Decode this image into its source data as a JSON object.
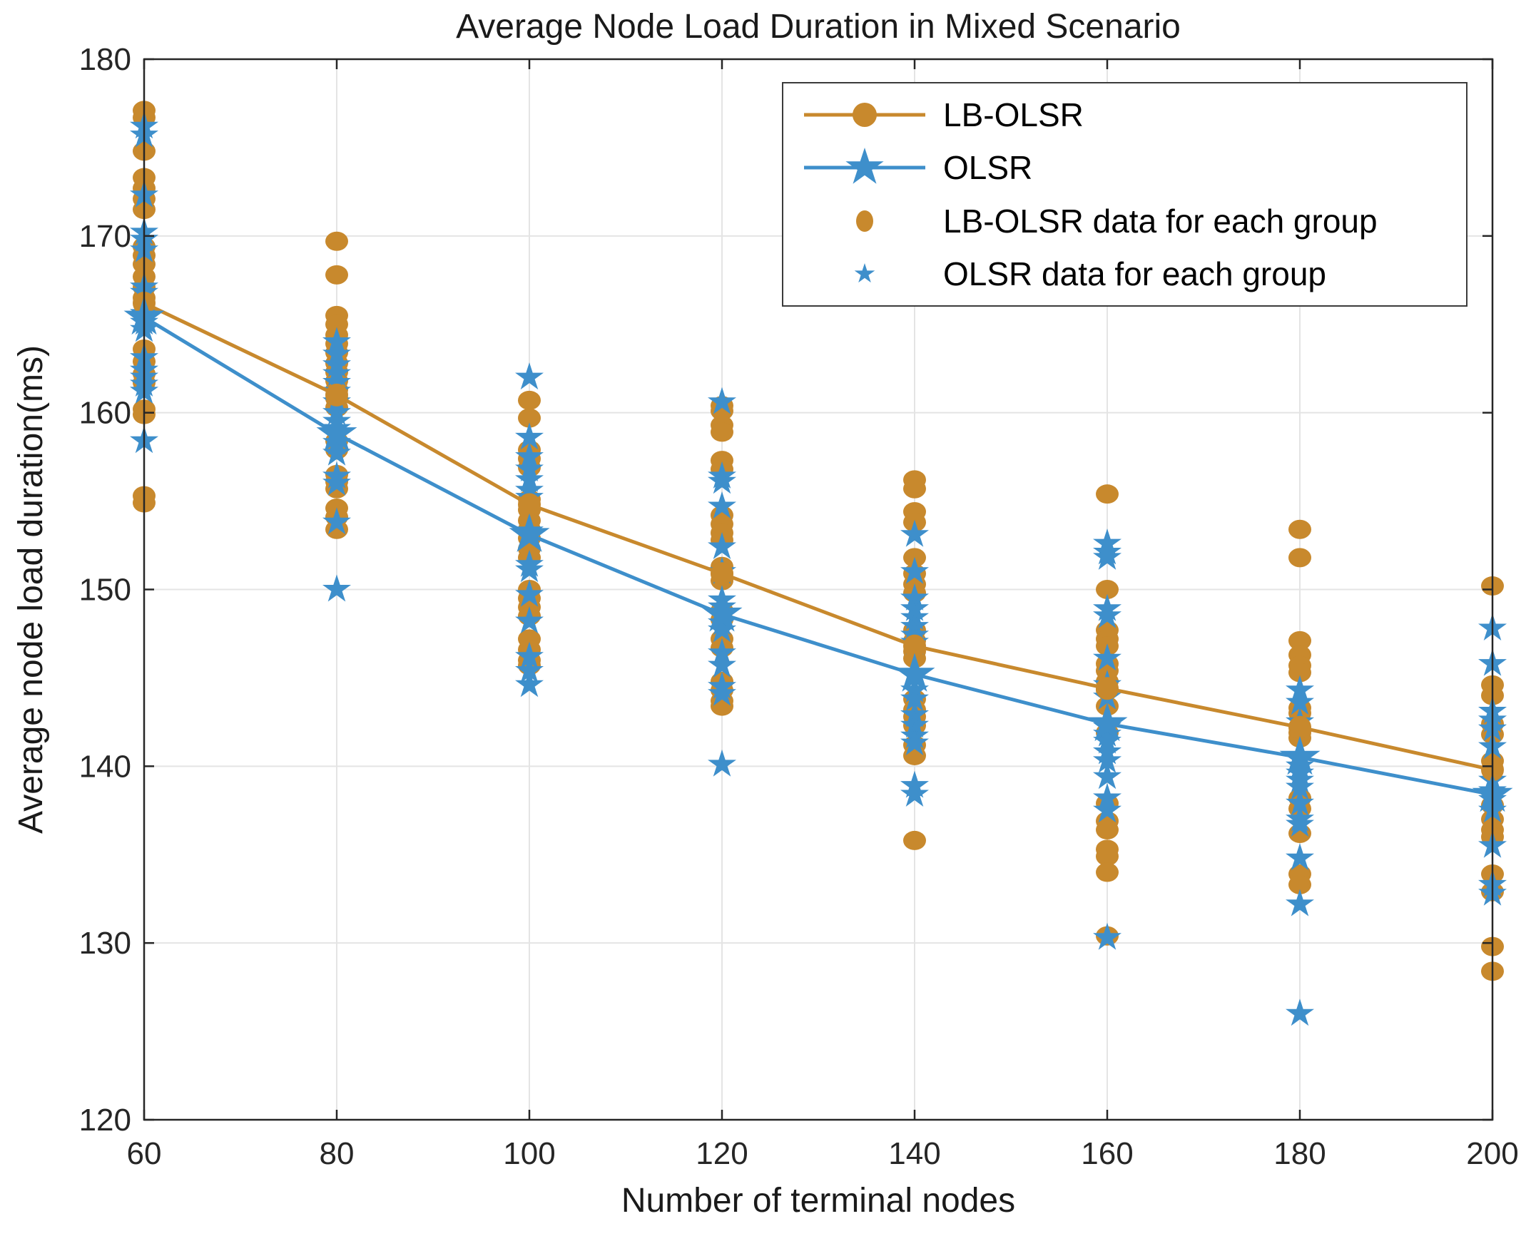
{
  "chart_data": {
    "type": "line+scatter",
    "title": "Average Node Load Duration in Mixed Scenario",
    "xlabel": "Number of terminal nodes",
    "ylabel": "Average node load duration(ms)",
    "xlim": [
      60,
      200
    ],
    "ylim": [
      120,
      180
    ],
    "xticks": [
      60,
      80,
      100,
      120,
      140,
      160,
      180,
      200
    ],
    "yticks": [
      120,
      130,
      140,
      150,
      160,
      170,
      180
    ],
    "grid": true,
    "legend_position": "top-right",
    "series": [
      {
        "name": "LB-OLSR",
        "type": "line",
        "marker": "circle",
        "color": "#C8892D",
        "x": [
          60,
          80,
          100,
          120,
          140,
          160,
          180,
          200
        ],
        "y": [
          166.2,
          161.0,
          154.8,
          150.9,
          146.8,
          144.4,
          142.2,
          139.8
        ]
      },
      {
        "name": "OLSR",
        "type": "line",
        "marker": "star",
        "color": "#3E8FCB",
        "x": [
          60,
          80,
          100,
          120,
          140,
          160,
          180,
          200
        ],
        "y": [
          165.4,
          158.8,
          153.1,
          148.6,
          145.2,
          142.4,
          140.5,
          138.4
        ]
      },
      {
        "name": "LB-OLSR data for each group",
        "type": "scatter",
        "marker": "circle",
        "color": "#C8892D",
        "groups": {
          "60": [
            177.1,
            176.7,
            174.8,
            173.3,
            172.7,
            172.1,
            171.5,
            169.4,
            168.9,
            168.4,
            167.7,
            167.1,
            166.5,
            163.6,
            162.9,
            162.2,
            161.7,
            160.2,
            159.9,
            155.3,
            154.9
          ],
          "80": [
            169.7,
            167.8,
            165.5,
            165.0,
            164.4,
            163.9,
            163.4,
            162.8,
            162.3,
            161.8,
            161.3,
            160.8,
            160.3,
            158.4,
            157.9,
            156.5,
            156.1,
            155.7,
            154.6,
            154.1,
            153.4
          ],
          "100": [
            160.7,
            159.7,
            157.9,
            157.4,
            156.9,
            155.1,
            154.5,
            153.9,
            153.4,
            152.9,
            152.3,
            151.8,
            150.0,
            149.5,
            149.0,
            148.5,
            147.2,
            146.6,
            146.0,
            145.7
          ],
          "120": [
            160.4,
            160.1,
            159.3,
            158.9,
            157.3,
            156.8,
            154.2,
            153.7,
            153.2,
            152.8,
            151.3,
            150.9,
            150.5,
            148.8,
            148.3,
            147.2,
            146.7,
            144.8,
            144.3,
            143.7,
            143.4
          ],
          "140": [
            156.2,
            155.7,
            154.4,
            153.8,
            151.8,
            150.9,
            150.3,
            149.8,
            147.7,
            147.1,
            146.5,
            146.1,
            143.8,
            143.2,
            142.8,
            142.3,
            141.2,
            140.6,
            135.8
          ],
          "160": [
            155.4,
            150.0,
            147.7,
            147.2,
            146.8,
            145.8,
            145.4,
            144.8,
            144.3,
            143.4,
            141.9,
            137.9,
            136.9,
            136.4,
            135.3,
            134.9,
            134.0,
            130.4
          ],
          "180": [
            153.4,
            151.8,
            147.1,
            146.3,
            145.7,
            145.3,
            143.3,
            143.0,
            141.9,
            141.6,
            138.2,
            137.6,
            136.2,
            133.9,
            133.3
          ],
          "200": [
            150.2,
            144.6,
            144.0,
            142.4,
            141.8,
            140.3,
            137.8,
            137.0,
            136.4,
            136.0,
            133.9,
            132.9,
            129.8,
            128.4
          ]
        }
      },
      {
        "name": "OLSR data for each group",
        "type": "scatter",
        "marker": "star",
        "color": "#3E8FCB",
        "groups": {
          "60": [
            176.2,
            175.7,
            172.3,
            170.2,
            169.8,
            169.2,
            167.1,
            166.8,
            165.6,
            165.1,
            164.7,
            163.1,
            162.4,
            162.0,
            161.6,
            161.2,
            158.4
          ],
          "80": [
            164.0,
            163.3,
            162.7,
            162.2,
            161.7,
            161.2,
            160.6,
            160.0,
            159.5,
            159.1,
            158.7,
            158.3,
            157.7,
            156.4,
            156.0,
            153.8,
            150.0
          ],
          "100": [
            162.0,
            158.6,
            157.5,
            156.8,
            156.2,
            155.6,
            155.2,
            153.3,
            151.4,
            151.1,
            149.7,
            148.2,
            146.2,
            145.4,
            144.6
          ],
          "120": [
            160.6,
            156.4,
            156.1,
            154.7,
            152.4,
            151.0,
            149.4,
            149.0,
            148.6,
            148.1,
            147.7,
            146.4,
            145.7,
            144.5,
            144.1,
            140.1
          ],
          "140": [
            153.1,
            151.0,
            149.5,
            148.9,
            148.4,
            147.9,
            147.4,
            147.0,
            144.3,
            143.8,
            142.9,
            142.3,
            141.7,
            141.3,
            138.9,
            138.4
          ],
          "160": [
            152.6,
            152.1,
            151.8,
            148.9,
            148.5,
            146.1,
            144.6,
            143.9,
            142.2,
            141.8,
            141.4,
            140.8,
            140.3,
            139.4,
            138.2,
            137.5,
            130.3
          ],
          "180": [
            144.3,
            143.6,
            142.5,
            140.0,
            139.6,
            139.2,
            138.8,
            137.9,
            137.0,
            136.7,
            134.8,
            132.2,
            126.0
          ],
          "200": [
            147.8,
            145.8,
            143.1,
            142.6,
            142.1,
            141.1,
            139.2,
            138.6,
            138.1,
            137.5,
            135.5,
            133.3,
            132.8
          ]
        }
      }
    ]
  },
  "colors": {
    "axis": "#262626",
    "grid": "#E4E4E4",
    "tick_text": "#262626",
    "title_text": "#1a1a1a",
    "background": "#FFFFFF",
    "legend_border": "#3b3b3b"
  }
}
